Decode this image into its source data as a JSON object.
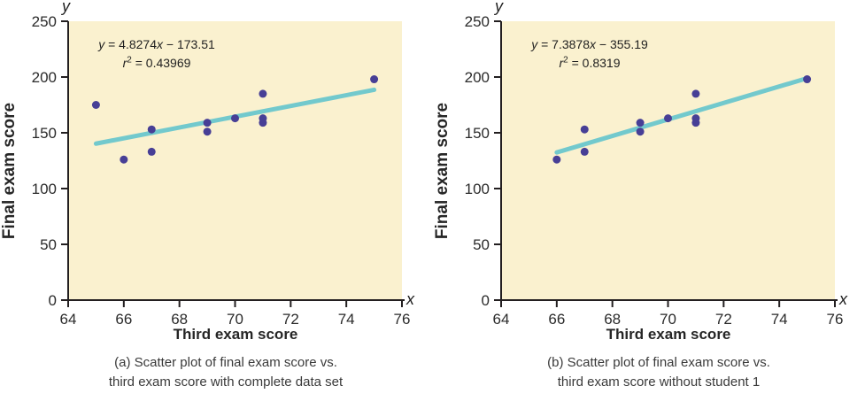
{
  "colors": {
    "background": "#FFFFFF",
    "plot_bg": "#FAF1CF",
    "point": "#473F96",
    "trend": "#72C9CD",
    "axis": "#231F20",
    "tick_text": "#2B2B2B",
    "label_text": "#262626",
    "caption_text": "#3A3A3A",
    "equation_text": "#1F1F1F"
  },
  "chart_data": [
    {
      "type": "scatter",
      "panel_label": "a",
      "xlabel": "Third exam score",
      "ylabel": "Final exam score",
      "axis_end_labels": {
        "x": "x",
        "y": "y"
      },
      "xlim": [
        64,
        76
      ],
      "ylim": [
        0,
        250
      ],
      "xticks": [
        64,
        66,
        68,
        70,
        72,
        74,
        76
      ],
      "yticks": [
        0,
        50,
        100,
        150,
        200,
        250
      ],
      "points": [
        [
          65,
          175
        ],
        [
          66,
          126
        ],
        [
          67,
          133
        ],
        [
          67,
          153
        ],
        [
          69,
          151
        ],
        [
          69,
          159
        ],
        [
          70,
          163
        ],
        [
          71,
          159
        ],
        [
          71,
          163
        ],
        [
          71,
          185
        ],
        [
          75,
          198
        ]
      ],
      "trendline": {
        "slope": 4.8274,
        "intercept": -173.51,
        "r_squared": 0.43969,
        "x_range": [
          65,
          75
        ]
      },
      "equation": {
        "lhs": "y",
        "mid": " = 4.8274",
        "xvar": "x",
        "tail": " − 173.51",
        "rvar": "r",
        "sup": "2",
        "rtail": " = 0.43969"
      },
      "caption": [
        "(a) Scatter plot of final exam score vs.",
        "third exam score with complete data set"
      ]
    },
    {
      "type": "scatter",
      "panel_label": "b",
      "xlabel": "Third exam score",
      "ylabel": "Final exam score",
      "axis_end_labels": {
        "x": "x",
        "y": "y"
      },
      "xlim": [
        64,
        76
      ],
      "ylim": [
        0,
        250
      ],
      "xticks": [
        64,
        66,
        68,
        70,
        72,
        74,
        76
      ],
      "yticks": [
        0,
        50,
        100,
        150,
        200,
        250
      ],
      "points": [
        [
          66,
          126
        ],
        [
          67,
          133
        ],
        [
          67,
          153
        ],
        [
          69,
          151
        ],
        [
          69,
          159
        ],
        [
          70,
          163
        ],
        [
          71,
          159
        ],
        [
          71,
          163
        ],
        [
          71,
          185
        ],
        [
          75,
          198
        ]
      ],
      "trendline": {
        "slope": 7.3878,
        "intercept": -355.19,
        "r_squared": 0.8319,
        "x_range": [
          66,
          75
        ]
      },
      "equation": {
        "lhs": "y",
        "mid": " = 7.3878",
        "xvar": "x",
        "tail": " − 355.19",
        "rvar": "r",
        "sup": "2",
        "rtail": " = 0.8319"
      },
      "caption": [
        "(b) Scatter plot of final exam score vs.",
        "third exam score without student 1"
      ]
    }
  ]
}
